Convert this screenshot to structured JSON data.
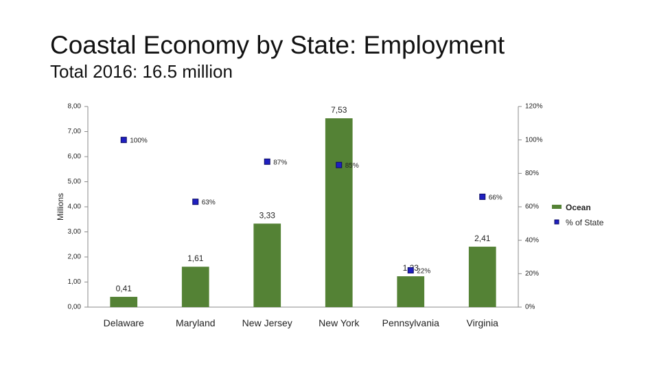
{
  "chart_data": {
    "type": "bar",
    "title": "Coastal Economy by State: Employment",
    "subtitle": "Total 2016: 16.5 million",
    "ylabel": "Millions",
    "categories": [
      "Delaware",
      "Maryland",
      "New Jersey",
      "New York",
      "Pennsylvania",
      "Virginia"
    ],
    "series": [
      {
        "name": "Ocean",
        "type": "bar",
        "color": "#548235",
        "values": [
          0.41,
          1.61,
          3.33,
          7.53,
          1.23,
          2.41
        ],
        "value_labels": [
          "0,41",
          "1,61",
          "3,33",
          "7,53",
          "1,23",
          "2,41"
        ]
      },
      {
        "name": "% of State",
        "type": "marker",
        "axis": "y2",
        "color": "#1f1fc0",
        "values": [
          100,
          63,
          87,
          85,
          22,
          66
        ],
        "value_labels": [
          "100%",
          "63%",
          "87%",
          "85%",
          "22%",
          "66%"
        ]
      }
    ],
    "ylim": [
      0,
      8
    ],
    "yticks": [
      {
        "value": 0,
        "label": "0,00"
      },
      {
        "value": 1,
        "label": "1,00"
      },
      {
        "value": 2,
        "label": "2,00"
      },
      {
        "value": 3,
        "label": "3,00"
      },
      {
        "value": 4,
        "label": "4,00"
      },
      {
        "value": 5,
        "label": "5,00"
      },
      {
        "value": 6,
        "label": "6,00"
      },
      {
        "value": 7,
        "label": "7,00"
      },
      {
        "value": 8,
        "label": "8,00"
      }
    ],
    "y2lim": [
      0,
      120
    ],
    "y2ticks": [
      {
        "value": 0,
        "label": "0%"
      },
      {
        "value": 20,
        "label": "20%"
      },
      {
        "value": 40,
        "label": "40%"
      },
      {
        "value": 60,
        "label": "60%"
      },
      {
        "value": 80,
        "label": "80%"
      },
      {
        "value": 100,
        "label": "100%"
      },
      {
        "value": 120,
        "label": "120%"
      }
    ],
    "legend": "right"
  }
}
